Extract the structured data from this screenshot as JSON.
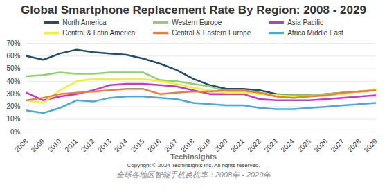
{
  "chart_data": {
    "type": "line",
    "title": "Global Smartphone Replacement Rate By Region: 2008 - 2029",
    "x": [
      2008,
      2009,
      2010,
      2011,
      2012,
      2013,
      2014,
      2015,
      2016,
      2017,
      2018,
      2019,
      2020,
      2021,
      2022,
      2023,
      2024,
      2025,
      2026,
      2027,
      2028,
      2029
    ],
    "xlim": [
      2008,
      2029
    ],
    "xticks": [
      2008,
      2009,
      2010,
      2011,
      2012,
      2013,
      2014,
      2015,
      2016,
      2017,
      2018,
      2019,
      2020,
      2021,
      2022,
      2023,
      2024,
      2025,
      2026,
      2027,
      2028,
      2029
    ],
    "ylim": [
      0,
      70
    ],
    "yticks": [
      {
        "value": 0,
        "label": "0%"
      },
      {
        "value": 10,
        "label": "10%"
      },
      {
        "value": 20,
        "label": "20%"
      },
      {
        "value": 30,
        "label": "30%"
      },
      {
        "value": 40,
        "label": "40%"
      },
      {
        "value": 50,
        "label": "50%"
      },
      {
        "value": 60,
        "label": "60%"
      },
      {
        "value": 70,
        "label": "70%"
      }
    ],
    "grid": true,
    "legend": "top",
    "series": [
      {
        "name": "North America",
        "color": "#1f4e6e",
        "values": [
          60,
          57,
          62,
          65,
          63,
          62,
          61,
          58,
          54,
          49,
          42,
          37,
          34,
          34,
          33,
          30,
          29,
          29,
          30,
          31,
          32,
          33
        ]
      },
      {
        "name": "Western Europe",
        "color": "#8fd16a",
        "values": [
          44,
          45,
          47,
          46,
          46,
          47,
          47,
          47,
          41,
          40,
          38,
          36,
          32,
          32,
          31,
          29,
          29,
          29,
          30,
          31,
          32,
          33
        ]
      },
      {
        "name": "Asia Pacific",
        "color": "#cc33cc",
        "values": [
          31,
          25,
          28,
          30,
          33,
          37,
          38,
          38,
          37,
          36,
          33,
          30,
          30,
          30,
          26,
          25,
          25,
          25,
          26,
          27,
          28,
          29
        ]
      },
      {
        "name": "Central & Latin America",
        "color": "#f2ee3a",
        "values": [
          25,
          23,
          33,
          40,
          42,
          42,
          42,
          42,
          40,
          38,
          35,
          33,
          31,
          31,
          30,
          29,
          28,
          28,
          29,
          30,
          32,
          34
        ]
      },
      {
        "name": "Central & Eastern Europe",
        "color": "#f07a3a",
        "values": [
          25,
          27,
          30,
          31,
          32,
          33,
          34,
          34,
          30,
          31,
          32,
          32,
          33,
          33,
          31,
          28,
          27,
          28,
          29,
          31,
          32,
          33
        ]
      },
      {
        "name": "Africa Middle East",
        "color": "#4aa8e0",
        "values": [
          17,
          15,
          19,
          25,
          24,
          27,
          28,
          28,
          27,
          26,
          23,
          22,
          21,
          21,
          19,
          18,
          18,
          19,
          20,
          21,
          22,
          23
        ]
      }
    ],
    "annotations": [
      "TechInsights",
      "Copyright © 2024 TechInsights Inc. All rights reserved."
    ],
    "caption": "全球各地区智能手机换机率：2008年 - 2029年"
  }
}
